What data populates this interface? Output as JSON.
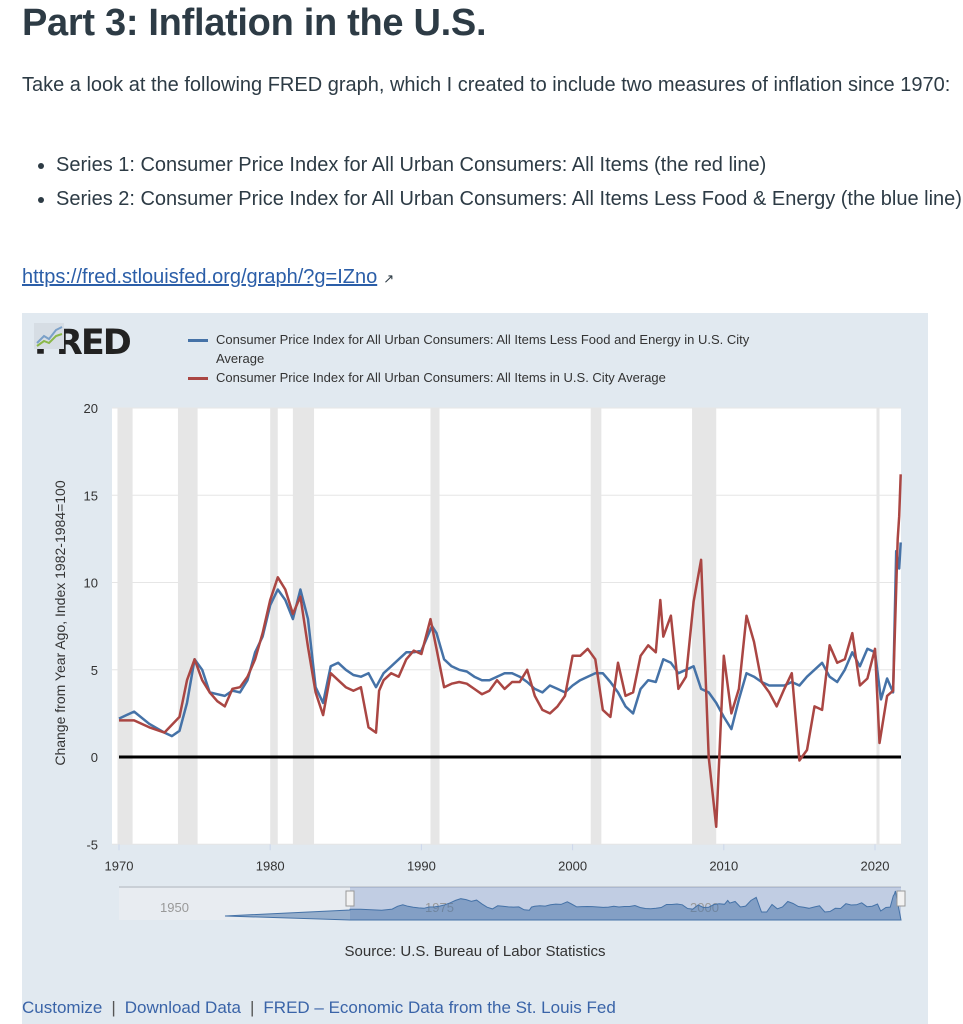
{
  "heading": "Part 3: Inflation in the U.S.",
  "intro": "Take a look at the following FRED graph, which I created to include two measures of inflation since 1970:",
  "bullets": [
    "Series 1: Consumer Price Index for All Urban Consumers: All Items (the red line)",
    "Series 2: Consumer Price Index for All Urban Consumers: All Items Less Food & Energy (the blue line)"
  ],
  "link": {
    "text": "https://fred.stlouisfed.org/graph/?g=IZno",
    "icon": "external-link-icon"
  },
  "fred": {
    "logo": "FRED",
    "source": "Source: U.S. Bureau of Labor Statistics",
    "footer": [
      "Customize",
      "Download Data",
      "FRED – Economic Data from the St. Louis Fed"
    ],
    "footer_sep": "|",
    "navigator_labels": [
      "1950",
      "1975",
      "2000"
    ],
    "panel_bg": "#e1e9f0"
  },
  "chart_data": {
    "type": "line",
    "ylabel": "Change from Year Ago, Index 1982-1984=100",
    "xlabel": "",
    "xlim": [
      1969.5,
      2021.7
    ],
    "ylim": [
      -5,
      20
    ],
    "xticks": [
      1970,
      1980,
      1990,
      2000,
      2010,
      2020
    ],
    "yticks": [
      -5,
      0,
      5,
      10,
      15,
      20
    ],
    "grid": true,
    "legend": "top",
    "recessions": [
      [
        1969.9,
        1970.9
      ],
      [
        1973.9,
        1975.2
      ],
      [
        1980.0,
        1980.5
      ],
      [
        1981.5,
        1982.9
      ],
      [
        1990.6,
        1991.2
      ],
      [
        2001.2,
        2001.9
      ],
      [
        2007.9,
        2009.5
      ],
      [
        2020.1,
        2020.3
      ]
    ],
    "series": [
      {
        "name": "Consumer Price Index for All Urban Consumers: All Items Less Food and Energy in U.S. City Average",
        "color": "#4572a7",
        "x": [
          1970,
          1971,
          1972,
          1973,
          1973.5,
          1974,
          1974.5,
          1975,
          1975.5,
          1976,
          1976.5,
          1977,
          1977.5,
          1978,
          1978.5,
          1979,
          1979.5,
          1980,
          1980.5,
          1981,
          1981.5,
          1982,
          1982.5,
          1983,
          1983.5,
          1984,
          1984.5,
          1985,
          1985.5,
          1986,
          1986.5,
          1987,
          1987.5,
          1988,
          1988.5,
          1989,
          1989.5,
          1990,
          1990.7,
          1991,
          1991.5,
          1992,
          1992.5,
          1993,
          1993.5,
          1994,
          1994.5,
          1995,
          1995.5,
          1996,
          1996.5,
          1997,
          1997.5,
          1998,
          1998.5,
          1999,
          1999.5,
          2000,
          2000.5,
          2001,
          2001.5,
          2002,
          2002.5,
          2003,
          2003.5,
          2004,
          2004.5,
          2005,
          2005.5,
          2006,
          2006.5,
          2007,
          2007.5,
          2008,
          2008.5,
          2009,
          2009.5,
          2010,
          2010.5,
          2011,
          2011.5,
          2012,
          2012.5,
          2013,
          2013.5,
          2014,
          2014.5,
          2015,
          2015.5,
          2016,
          2016.5,
          2017,
          2017.5,
          2018,
          2018.5,
          2019,
          2019.5,
          2020,
          2020.4,
          2020.8,
          2021.2,
          2021.4,
          2021.6,
          2021.7
        ],
        "values": [
          2.2,
          2.6,
          1.9,
          1.4,
          1.2,
          1.5,
          3.1,
          5.6,
          5.0,
          3.7,
          3.6,
          3.5,
          3.8,
          3.7,
          4.4,
          6.0,
          6.9,
          8.7,
          9.6,
          9.0,
          7.9,
          9.6,
          7.9,
          4.0,
          3.1,
          5.2,
          5.4,
          5.0,
          4.7,
          4.6,
          4.8,
          4.0,
          4.8,
          5.2,
          5.6,
          6.0,
          6.0,
          6.1,
          7.5,
          7.1,
          5.6,
          5.2,
          5.0,
          4.9,
          4.6,
          4.4,
          4.4,
          4.6,
          4.8,
          4.8,
          4.6,
          4.3,
          3.9,
          3.7,
          4.1,
          3.9,
          3.7,
          4.1,
          4.4,
          4.6,
          4.8,
          4.8,
          4.3,
          3.7,
          2.9,
          2.5,
          3.9,
          4.4,
          4.3,
          5.6,
          5.4,
          4.8,
          5.0,
          5.2,
          3.9,
          3.7,
          3.1,
          2.3,
          1.6,
          3.3,
          4.8,
          4.6,
          4.3,
          4.1,
          4.1,
          4.1,
          4.3,
          4.1,
          4.6,
          5.0,
          5.4,
          4.6,
          4.3,
          5.0,
          6.0,
          5.2,
          6.2,
          6.0,
          3.3,
          4.5,
          3.7,
          11.8,
          10.8,
          12.3
        ]
      },
      {
        "name": "Consumer Price Index for All Urban Consumers: All Items in U.S. City Average",
        "color": "#aa4643",
        "x": [
          1970,
          1971,
          1972,
          1973,
          1974,
          1974.5,
          1975,
          1975.5,
          1976,
          1976.5,
          1977,
          1977.5,
          1978,
          1978.5,
          1979,
          1979.5,
          1980,
          1980.5,
          1981,
          1981.5,
          1982,
          1982.5,
          1983,
          1983.5,
          1984,
          1984.5,
          1985,
          1985.5,
          1986,
          1986.5,
          1987,
          1987.2,
          1987.5,
          1988,
          1988.5,
          1989,
          1989.5,
          1990,
          1990.6,
          1991,
          1991.5,
          1992,
          1992.5,
          1993,
          1993.5,
          1994,
          1994.5,
          1995,
          1995.5,
          1996,
          1996.5,
          1997,
          1997.5,
          1998,
          1998.5,
          1999,
          1999.5,
          2000,
          2000.5,
          2001,
          2001.5,
          2002,
          2002.5,
          2003,
          2003.5,
          2004,
          2004.5,
          2005,
          2005.5,
          2005.8,
          2006,
          2006.5,
          2007,
          2007.5,
          2008,
          2008.5,
          2009,
          2009.5,
          2010,
          2010.5,
          2011,
          2011.5,
          2012,
          2012.5,
          2013,
          2013.5,
          2014,
          2014.5,
          2015,
          2015.5,
          2016,
          2016.5,
          2017,
          2017.5,
          2018,
          2018.5,
          2019,
          2019.5,
          2020,
          2020.3,
          2020.8,
          2021.2,
          2021.5,
          2021.6,
          2021.7
        ],
        "values": [
          2.1,
          2.1,
          1.7,
          1.4,
          2.3,
          4.4,
          5.6,
          4.4,
          3.7,
          3.2,
          2.9,
          3.9,
          4.0,
          4.6,
          5.6,
          7.1,
          9.0,
          10.3,
          9.6,
          8.2,
          9.2,
          6.3,
          3.7,
          2.4,
          4.8,
          4.4,
          4.0,
          3.8,
          4.0,
          1.7,
          1.4,
          3.8,
          4.4,
          4.8,
          4.6,
          5.6,
          6.1,
          5.9,
          7.9,
          6.2,
          4.0,
          4.2,
          4.3,
          4.2,
          3.9,
          3.6,
          3.8,
          4.4,
          3.9,
          4.3,
          4.3,
          5.0,
          3.5,
          2.7,
          2.5,
          2.9,
          3.5,
          5.8,
          5.8,
          6.2,
          5.6,
          2.7,
          2.3,
          5.4,
          3.5,
          3.7,
          5.8,
          6.4,
          6.0,
          9.0,
          6.9,
          8.1,
          3.9,
          4.6,
          8.9,
          11.3,
          0,
          -4.0,
          5.8,
          2.5,
          3.9,
          8.1,
          6.6,
          4.3,
          3.7,
          2.9,
          3.9,
          4.8,
          -0.2,
          0.4,
          2.9,
          2.7,
          6.4,
          5.4,
          5.6,
          7.1,
          4.1,
          4.5,
          6.2,
          0.8,
          3.5,
          3.8,
          12.5,
          13.8,
          16.2
        ]
      }
    ]
  }
}
